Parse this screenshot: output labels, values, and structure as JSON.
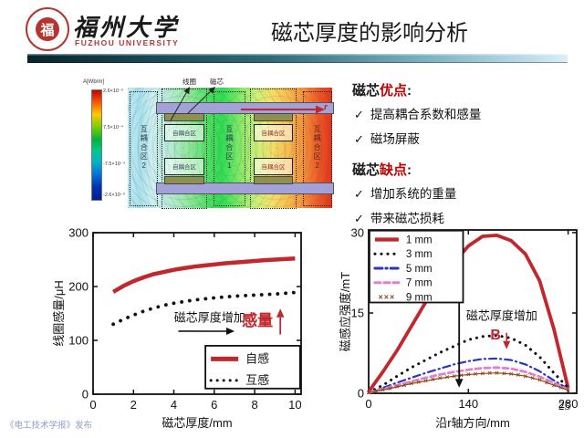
{
  "header": {
    "seal_char": "福",
    "university_cn": "福州大学",
    "university_en": "FUZHOU UNIVERSITY",
    "title": "磁芯厚度的影响分析"
  },
  "simulation": {
    "colorbar": {
      "label": "A[Wb/m]",
      "ticks": [
        "2.6×10⁻³",
        "7.5×10⁻⁴",
        "-7.5×10⁻⁴",
        "-2.6×10⁻³"
      ]
    },
    "coil_label": "线圈",
    "core_label": "磁芯",
    "r_label": "r",
    "mutual1_label": "互耦合区1",
    "mutual2_label": "互耦合区2",
    "self_label": "自耦合区"
  },
  "notes": {
    "check": "✓",
    "pros": {
      "prefix": "磁芯",
      "em": "优点",
      "colon": ":",
      "items": [
        "提高耦合系数和感量",
        "磁场屏蔽"
      ]
    },
    "cons": {
      "prefix": "磁芯",
      "em": "缺点",
      "colon": ":",
      "items": [
        "增加系统的重量",
        "带来磁芯损耗"
      ]
    }
  },
  "colors": {
    "accent_red": "#c1272d",
    "emphasis_red": "#c00000"
  },
  "chart_data": [
    {
      "type": "line",
      "title": "",
      "xlabel": "磁芯厚度/mm",
      "ylabel": "线圈感量/μH",
      "xlim": [
        0,
        10.3
      ],
      "ylim": [
        0,
        300
      ],
      "xticks": [
        0,
        2,
        4,
        6,
        8,
        10
      ],
      "yticks": [
        0,
        100,
        200,
        300
      ],
      "grid": false,
      "legend_position": "lower right",
      "x": [
        1,
        1.5,
        2,
        2.5,
        3,
        3.5,
        4,
        4.5,
        5,
        5.5,
        6,
        6.5,
        7,
        7.5,
        8,
        8.5,
        9,
        9.5,
        10
      ],
      "series": [
        {
          "name": "自感",
          "color": "#c1272d",
          "style": "solid",
          "width": 4.5,
          "values": [
            190,
            201,
            210,
            217,
            223,
            227,
            231,
            234,
            237,
            239,
            241,
            243,
            244.5,
            246,
            247.5,
            249,
            250,
            251,
            252
          ]
        },
        {
          "name": "互感",
          "color": "#111111",
          "style": "dotted",
          "width": 3.8,
          "values": [
            130,
            139,
            147,
            154,
            160,
            165,
            169,
            172,
            175,
            177,
            179,
            180.5,
            182,
            183,
            184,
            185,
            186,
            187.5,
            189
          ]
        }
      ],
      "annotations": [
        {
          "text": "磁芯厚度增加",
          "color": "#111111",
          "size": 13,
          "bold": false
        },
        {
          "text": "感量",
          "color": "#c1272d",
          "size": 17,
          "bold": true
        }
      ]
    },
    {
      "type": "line",
      "title": "",
      "xlabel": "沿r轴方向/mm",
      "ylabel": "磁感应强度/mT",
      "xlim": [
        0,
        292
      ],
      "ylim": [
        0,
        30.5
      ],
      "xticks": [
        0,
        140,
        280
      ],
      "yticks": [
        0,
        15,
        30
      ],
      "grid": false,
      "legend_position": "upper left",
      "x": [
        0,
        20,
        40,
        60,
        80,
        100,
        120,
        140,
        160,
        180,
        200,
        220,
        240,
        260,
        280
      ],
      "series": [
        {
          "name": "1 mm",
          "color": "#c1272d",
          "style": "solid",
          "width": 3.8,
          "values": [
            0.3,
            4,
            8,
            12.5,
            17,
            21,
            24.5,
            27.5,
            29.3,
            29.5,
            28.5,
            26,
            21,
            12,
            1
          ]
        },
        {
          "name": "3 mm",
          "color": "#111111",
          "style": "dotted",
          "width": 3,
          "values": [
            0.2,
            1.5,
            3.2,
            4.8,
            6.2,
            7.6,
            8.8,
            10,
            10.6,
            10.8,
            10.3,
            9,
            6.8,
            3.8,
            1
          ]
        },
        {
          "name": "5 mm",
          "color": "#2b35c0",
          "style": "dashdot",
          "width": 2.2,
          "values": [
            0.15,
            1,
            2,
            2.9,
            3.8,
            4.6,
            5.4,
            6,
            6.4,
            6.5,
            6.2,
            5.4,
            4.1,
            2.4,
            0.8
          ]
        },
        {
          "name": "7 mm",
          "color": "#e67fc8",
          "style": "dashed",
          "width": 2.8,
          "values": [
            0.1,
            0.8,
            1.5,
            2.2,
            2.9,
            3.5,
            4,
            4.4,
            4.7,
            4.8,
            4.6,
            4,
            3.1,
            1.9,
            0.7
          ]
        },
        {
          "name": "9 mm",
          "color": "#8a4a16",
          "style": "xmarks",
          "width": 1.2,
          "values": [
            0.1,
            0.6,
            1.2,
            1.8,
            2.3,
            2.8,
            3.2,
            3.5,
            3.7,
            3.8,
            3.6,
            3.2,
            2.5,
            1.5,
            0.6
          ]
        }
      ],
      "annotations": [
        {
          "text": "磁芯厚度增加",
          "color": "#111111",
          "size": 13,
          "bold": false
        },
        {
          "text": "B",
          "color": "#c1272d",
          "size": 16,
          "bold": true
        }
      ]
    }
  ],
  "footer": {
    "publisher": "《电工技术学报》发布",
    "page_number": "25"
  }
}
